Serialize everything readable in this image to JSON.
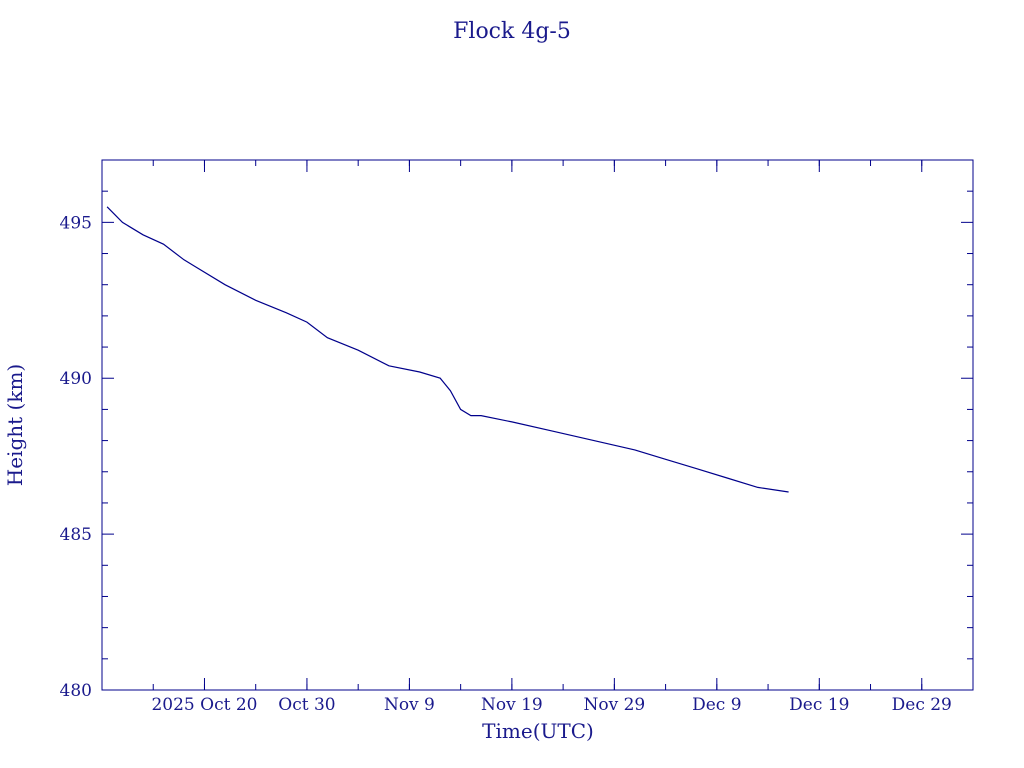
{
  "chart_data": {
    "type": "line",
    "title": "Flock 4g-5",
    "xlabel": "Time(UTC)",
    "ylabel": "Height (km)",
    "ylim": [
      480,
      497
    ],
    "xlim": [
      "2025-10-10T00:00",
      "2026-01-03T00:00"
    ],
    "grid": false,
    "colors": {
      "axes": "#00008b",
      "line": "#00008b",
      "text": "#1a1a8c"
    },
    "y_ticks": [
      {
        "value": 480,
        "label": "480"
      },
      {
        "value": 485,
        "label": "485"
      },
      {
        "value": 490,
        "label": "490"
      },
      {
        "value": 495,
        "label": "495"
      }
    ],
    "x_ticks": [
      {
        "date": "2025-10-20",
        "label": "2025 Oct 20"
      },
      {
        "date": "2025-10-30",
        "label": "Oct 30"
      },
      {
        "date": "2025-11-09",
        "label": "Nov  9"
      },
      {
        "date": "2025-11-19",
        "label": "Nov 19"
      },
      {
        "date": "2025-11-29",
        "label": "Nov 29"
      },
      {
        "date": "2025-12-09",
        "label": "Dec  9"
      },
      {
        "date": "2025-12-19",
        "label": "Dec 19"
      },
      {
        "date": "2025-12-29",
        "label": "Dec 29"
      }
    ],
    "series": [
      {
        "points": [
          {
            "x": "2025-10-10T12:00",
            "y": 495.5
          },
          {
            "x": "2025-10-12T00:00",
            "y": 495.0
          },
          {
            "x": "2025-10-14T00:00",
            "y": 494.6
          },
          {
            "x": "2025-10-16T00:00",
            "y": 494.3
          },
          {
            "x": "2025-10-18T00:00",
            "y": 493.8
          },
          {
            "x": "2025-10-19T00:00",
            "y": 493.6
          },
          {
            "x": "2025-10-22T00:00",
            "y": 493.0
          },
          {
            "x": "2025-10-25T00:00",
            "y": 492.5
          },
          {
            "x": "2025-10-28T00:00",
            "y": 492.1
          },
          {
            "x": "2025-10-30T00:00",
            "y": 491.8
          },
          {
            "x": "2025-11-01T00:00",
            "y": 491.3
          },
          {
            "x": "2025-11-04T00:00",
            "y": 490.9
          },
          {
            "x": "2025-11-07T00:00",
            "y": 490.4
          },
          {
            "x": "2025-11-10T00:00",
            "y": 490.2
          },
          {
            "x": "2025-11-12T00:00",
            "y": 490.0
          },
          {
            "x": "2025-11-13T00:00",
            "y": 489.6
          },
          {
            "x": "2025-11-14T00:00",
            "y": 489.0
          },
          {
            "x": "2025-11-15T00:00",
            "y": 488.8
          },
          {
            "x": "2025-11-16T00:00",
            "y": 488.8
          },
          {
            "x": "2025-11-19T00:00",
            "y": 488.6
          },
          {
            "x": "2025-11-23T00:00",
            "y": 488.3
          },
          {
            "x": "2025-11-27T00:00",
            "y": 488.0
          },
          {
            "x": "2025-12-01T00:00",
            "y": 487.7
          },
          {
            "x": "2025-12-04T00:00",
            "y": 487.4
          },
          {
            "x": "2025-12-07T00:00",
            "y": 487.1
          },
          {
            "x": "2025-12-10T00:00",
            "y": 486.8
          },
          {
            "x": "2025-12-13T00:00",
            "y": 486.5
          },
          {
            "x": "2025-12-16T00:00",
            "y": 486.35
          }
        ]
      }
    ]
  }
}
